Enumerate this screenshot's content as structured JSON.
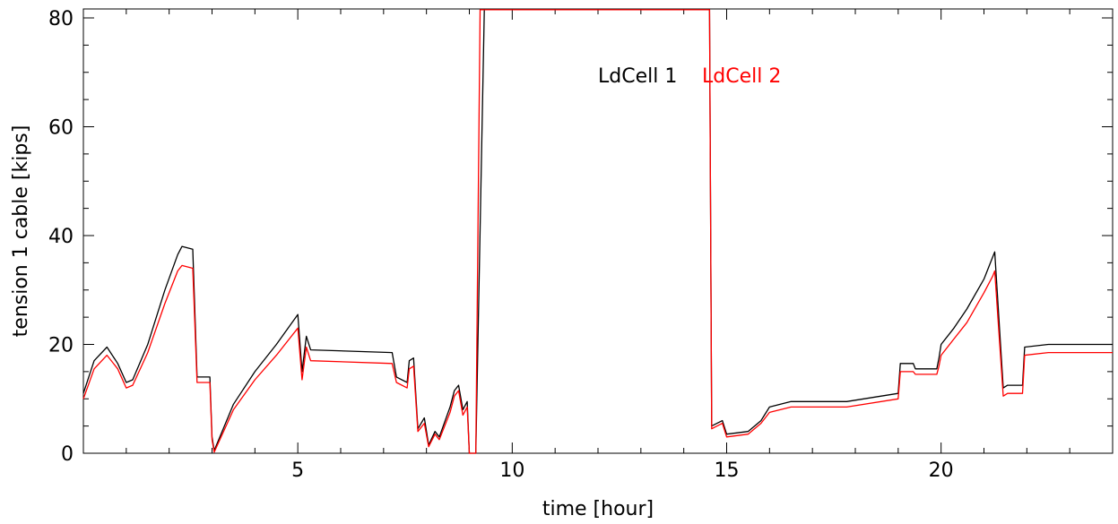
{
  "chart_data": {
    "type": "line",
    "title": "",
    "xlabel": "time [hour]",
    "ylabel": "tension 1 cable [kips]",
    "xlim": [
      0,
      24
    ],
    "ylim": [
      0,
      80
    ],
    "grid": false,
    "x_ticks": [
      5,
      10,
      15,
      20
    ],
    "y_ticks": [
      0,
      20,
      40,
      60,
      80
    ],
    "legend": {
      "placement": "top-center, inline"
    },
    "colors": {
      "axes": "#000000"
    },
    "series": [
      {
        "name": "LdCell 1",
        "color": "#000000",
        "points": [
          [
            0.0,
            11.0
          ],
          [
            0.25,
            17.0
          ],
          [
            0.55,
            19.5
          ],
          [
            0.8,
            16.5
          ],
          [
            1.0,
            13.0
          ],
          [
            1.15,
            13.5
          ],
          [
            1.5,
            20.0
          ],
          [
            1.9,
            30.0
          ],
          [
            2.2,
            36.5
          ],
          [
            2.3,
            38.0
          ],
          [
            2.55,
            37.5
          ],
          [
            2.65,
            14.0
          ],
          [
            2.95,
            14.0
          ],
          [
            3.0,
            3.0
          ],
          [
            3.05,
            0.5
          ],
          [
            3.5,
            9.0
          ],
          [
            4.0,
            15.0
          ],
          [
            4.5,
            20.0
          ],
          [
            5.0,
            25.5
          ],
          [
            5.1,
            15.0
          ],
          [
            5.2,
            21.5
          ],
          [
            5.3,
            19.0
          ],
          [
            7.2,
            18.5
          ],
          [
            7.3,
            14.0
          ],
          [
            7.55,
            13.0
          ],
          [
            7.6,
            17.0
          ],
          [
            7.7,
            17.5
          ],
          [
            7.8,
            4.5
          ],
          [
            7.95,
            6.5
          ],
          [
            8.05,
            1.5
          ],
          [
            8.2,
            4.0
          ],
          [
            8.3,
            3.0
          ],
          [
            8.55,
            8.5
          ],
          [
            8.65,
            11.5
          ],
          [
            8.75,
            12.5
          ],
          [
            8.85,
            8.0
          ],
          [
            8.95,
            9.5
          ],
          [
            9.0,
            0.0
          ],
          [
            9.15,
            0.0
          ],
          [
            9.35,
            81.5
          ],
          [
            14.6,
            81.5
          ],
          [
            14.65,
            5.0
          ],
          [
            14.9,
            6.0
          ],
          [
            15.0,
            3.5
          ],
          [
            15.5,
            4.0
          ],
          [
            15.8,
            6.0
          ],
          [
            16.0,
            8.5
          ],
          [
            16.5,
            9.5
          ],
          [
            17.8,
            9.5
          ],
          [
            19.0,
            11.0
          ],
          [
            19.05,
            16.5
          ],
          [
            19.35,
            16.5
          ],
          [
            19.4,
            15.5
          ],
          [
            19.9,
            15.5
          ],
          [
            19.95,
            17.5
          ],
          [
            20.0,
            20.0
          ],
          [
            20.3,
            23.0
          ],
          [
            20.6,
            26.5
          ],
          [
            21.0,
            32.0
          ],
          [
            21.2,
            36.0
          ],
          [
            21.25,
            37.0
          ],
          [
            21.45,
            12.0
          ],
          [
            21.55,
            12.5
          ],
          [
            21.9,
            12.5
          ],
          [
            21.95,
            19.5
          ],
          [
            22.5,
            20.0
          ],
          [
            24.0,
            20.0
          ]
        ]
      },
      {
        "name": "LdCell 2",
        "color": "#ff0000",
        "points": [
          [
            0.0,
            10.0
          ],
          [
            0.25,
            15.5
          ],
          [
            0.55,
            18.0
          ],
          [
            0.8,
            15.5
          ],
          [
            1.0,
            12.0
          ],
          [
            1.15,
            12.5
          ],
          [
            1.5,
            18.5
          ],
          [
            1.9,
            27.5
          ],
          [
            2.2,
            33.5
          ],
          [
            2.3,
            34.5
          ],
          [
            2.55,
            34.0
          ],
          [
            2.65,
            13.0
          ],
          [
            2.95,
            13.0
          ],
          [
            3.0,
            2.5
          ],
          [
            3.05,
            0.2
          ],
          [
            3.5,
            8.0
          ],
          [
            4.0,
            13.5
          ],
          [
            4.5,
            18.0
          ],
          [
            5.0,
            23.0
          ],
          [
            5.1,
            13.5
          ],
          [
            5.2,
            19.5
          ],
          [
            5.3,
            17.0
          ],
          [
            7.2,
            16.5
          ],
          [
            7.3,
            13.0
          ],
          [
            7.55,
            12.0
          ],
          [
            7.6,
            15.5
          ],
          [
            7.7,
            16.0
          ],
          [
            7.8,
            4.0
          ],
          [
            7.95,
            5.5
          ],
          [
            8.05,
            1.2
          ],
          [
            8.2,
            3.5
          ],
          [
            8.3,
            2.5
          ],
          [
            8.55,
            7.5
          ],
          [
            8.65,
            10.5
          ],
          [
            8.75,
            11.5
          ],
          [
            8.85,
            7.0
          ],
          [
            8.95,
            8.5
          ],
          [
            9.0,
            0.0
          ],
          [
            9.15,
            0.0
          ],
          [
            9.25,
            81.5
          ],
          [
            14.6,
            81.5
          ],
          [
            14.65,
            4.5
          ],
          [
            14.9,
            5.5
          ],
          [
            15.0,
            3.0
          ],
          [
            15.5,
            3.5
          ],
          [
            15.8,
            5.5
          ],
          [
            16.0,
            7.5
          ],
          [
            16.5,
            8.5
          ],
          [
            17.8,
            8.5
          ],
          [
            19.0,
            10.0
          ],
          [
            19.05,
            15.0
          ],
          [
            19.35,
            15.0
          ],
          [
            19.4,
            14.5
          ],
          [
            19.9,
            14.5
          ],
          [
            19.95,
            16.0
          ],
          [
            20.0,
            18.0
          ],
          [
            20.3,
            21.0
          ],
          [
            20.6,
            24.0
          ],
          [
            21.0,
            29.5
          ],
          [
            21.2,
            32.5
          ],
          [
            21.25,
            33.5
          ],
          [
            21.45,
            10.5
          ],
          [
            21.55,
            11.0
          ],
          [
            21.9,
            11.0
          ],
          [
            21.95,
            18.0
          ],
          [
            22.5,
            18.5
          ],
          [
            24.0,
            18.5
          ]
        ]
      }
    ]
  }
}
